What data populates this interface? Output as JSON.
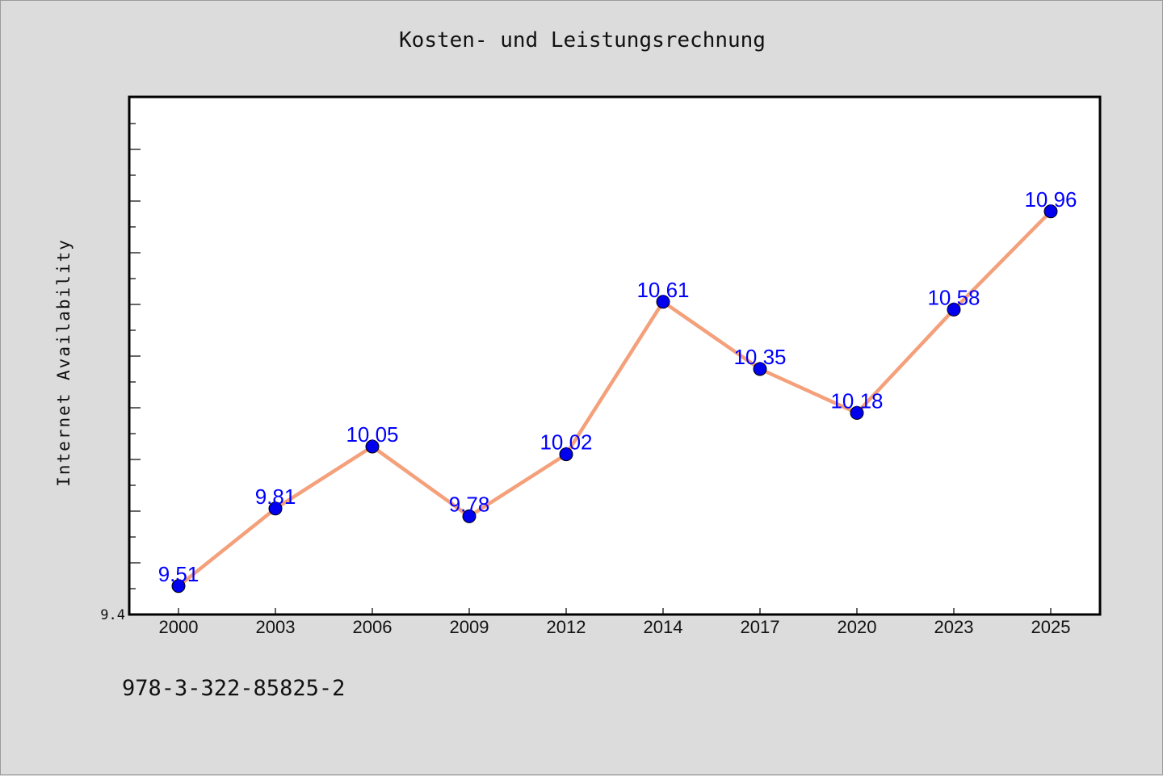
{
  "page": {
    "footer_code": "978-3-322-85825-2"
  },
  "chart_data": {
    "type": "line",
    "title": "Kosten- und Leistungsrechnung",
    "xlabel": "",
    "ylabel": "Internet Availability",
    "categories": [
      "2000",
      "2003",
      "2006",
      "2009",
      "2012",
      "2014",
      "2017",
      "2020",
      "2023",
      "2025"
    ],
    "series": [
      {
        "values": [
          9.51,
          9.81,
          10.05,
          9.78,
          10.02,
          10.61,
          10.35,
          10.18,
          10.58,
          10.96
        ],
        "line_color": "#f4a07a",
        "marker_color": "#0000ee",
        "label_color": "#0000ff"
      }
    ],
    "ylim": [
      9.4,
      11.4
    ],
    "y_tick_labels": [
      "9.4"
    ],
    "grid": false,
    "legend": "none",
    "plot_background": "#ffffff",
    "page_background": "#dcdcdc"
  }
}
